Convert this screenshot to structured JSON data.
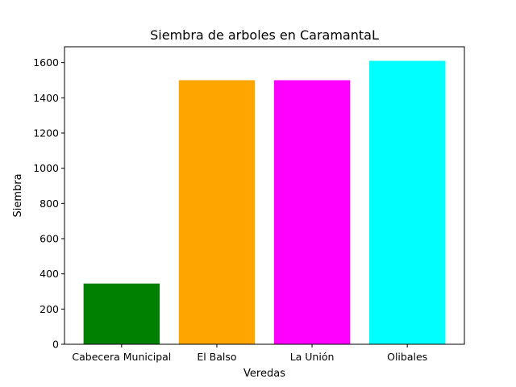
{
  "chart_data": {
    "type": "bar",
    "title": "Siembra de arboles en CaramantaL",
    "xlabel": "Veredas",
    "ylabel": "Siembra",
    "categories": [
      "Cabecera Municipal",
      "El Balso",
      "La Unión",
      "Olibales"
    ],
    "values": [
      345,
      1500,
      1500,
      1610
    ],
    "colors": [
      "#008000",
      "#FFA500",
      "#FF00FF",
      "#00FFFF"
    ],
    "ylim": [
      0,
      1690
    ],
    "yticks": [
      0,
      200,
      400,
      600,
      800,
      1000,
      1200,
      1400,
      1600
    ],
    "grid": false,
    "legend": "none"
  }
}
